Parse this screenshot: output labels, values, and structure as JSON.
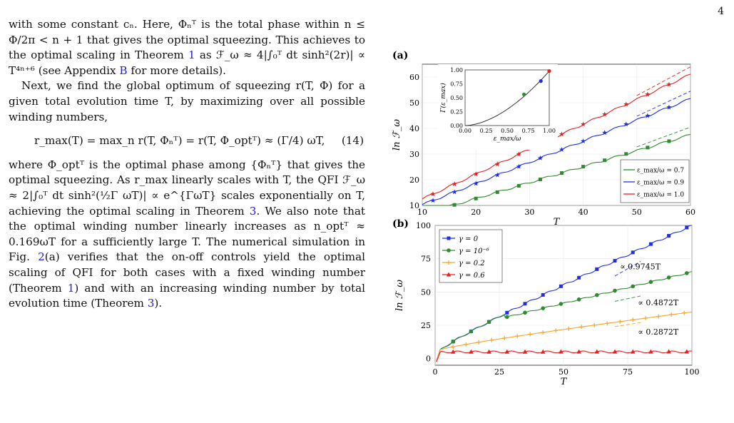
{
  "page_number": "4",
  "text": {
    "p1": "with some constant cₙ. Here, Φₙᵀ is the total phase within n ≤ Φ/2π < n + 1 that gives the optimal squeezing. This achieves to the optimal scaling in Theorem",
    "p1_ref1": "1",
    "p1b": " as ℱ_ω ≈ 4|∫₀ᵀ dt sinh²(2r)| ∝ T⁴ⁿ⁺⁶ (see Appendix ",
    "p1_ref2": "B",
    "p1c": " for more details).",
    "p2": "Next, we find the global optimum of squeezing r(T, Φ) for a given total evolution time T, by maximizing over all possible winding numbers,",
    "eq": "r_max(T) = max_n r(T, Φₙᵀ) = r(T, Φ_optᵀ) ≈ (Γ/4) ωT,",
    "eq_num": "(14)",
    "p3": "where Φ_optᵀ is the optimal phase among {Φₙᵀ} that gives the optimal squeezing. As r_max linearly scales with T, the QFI ℱ_ω ≈ 2|∫₀ᵀ dt sinh²(½Γ ωT)| ∝ e^{ΓωT} scales exponentially on T, achieving the optimal scaling in Theorem",
    "p3_ref1": "3",
    "p3b": ". We also note that the optimal winding number linearly increases as n_optᵀ ≈ 0.169ωT for a sufficiently large T. The numerical simulation in Fig.",
    "p3_ref2": "2",
    "p3c": "(a) verifies that the on-off controls yield the optimal scaling of QFI for both cases with a fixed winding number (Theorem",
    "p3_ref3": "1",
    "p3d": ") and with an increasing winding number by total evolution time (Theorem",
    "p3_ref4": "3",
    "p3e": ")."
  },
  "colors": {
    "green": "#2e8b2e",
    "blue": "#1f2ee6",
    "red": "#e61f1f",
    "orange": "#f5a623",
    "link": "#2323c8"
  },
  "chart_data": [
    {
      "type": "line",
      "panel_label": "(a)",
      "xlabel": "T",
      "ylabel": "ln ℱ_ω",
      "xlim": [
        10,
        60
      ],
      "ylim": [
        10,
        65
      ],
      "xticks": [
        10,
        20,
        30,
        40,
        50,
        60
      ],
      "yticks": [
        10,
        20,
        30,
        40,
        50,
        60
      ],
      "legend_position": "bottom-right",
      "series": [
        {
          "name": "ε_max/ω = 0.7",
          "color": "#2e8b2e",
          "marker": "square",
          "x": [
            10,
            60
          ],
          "y": [
            6.5,
            37.5
          ]
        },
        {
          "name": "ε_max/ω = 0.9",
          "color": "#1f2ee6",
          "marker": "star",
          "x": [
            10,
            60
          ],
          "y": [
            10.3,
            51.5
          ]
        },
        {
          "name": "ε_max/ω = 1.0",
          "color": "#e61f1f",
          "marker": "star",
          "x": [
            10,
            60
          ],
          "y": [
            12.5,
            61
          ]
        }
      ],
      "inset": {
        "xlabel": "ε_max/ω",
        "ylabel": "Γ(ε_max)",
        "xlim": [
          0,
          1
        ],
        "ylim": [
          0,
          1
        ],
        "xticks": [
          0.0,
          0.25,
          0.5,
          0.75,
          1.0
        ],
        "xtick_labels": [
          "0.00",
          "0.25",
          "0.50",
          "0.75",
          "1.00"
        ],
        "yticks": [
          0,
          0.25,
          0.5,
          0.75,
          1.0
        ],
        "ytick_labels": [
          "0.00",
          "0.25",
          "0.50",
          "0.75",
          "1.00"
        ],
        "points": [
          {
            "x": 0.7,
            "y": 0.56,
            "color": "#2e8b2e"
          },
          {
            "x": 0.9,
            "y": 0.8,
            "color": "#1f2ee6"
          },
          {
            "x": 1.0,
            "y": 0.98,
            "color": "#e61f1f"
          }
        ]
      }
    },
    {
      "type": "line",
      "panel_label": "(b)",
      "xlabel": "T",
      "ylabel": "ln ℱ_ω",
      "xlim": [
        0,
        100
      ],
      "ylim": [
        -5,
        100
      ],
      "xticks": [
        0,
        25,
        50,
        75,
        100
      ],
      "yticks": [
        0,
        25,
        50,
        75,
        100
      ],
      "legend_position": "top-left",
      "series": [
        {
          "name": "γ = 0",
          "color": "#1f2ee6",
          "marker": "square",
          "slope": 0.9745
        },
        {
          "name": "γ = 10⁻⁶",
          "color": "#2e8b2e",
          "marker": "circle",
          "slope": 0.4872
        },
        {
          "name": "γ = 0.2",
          "color": "#f5a623",
          "marker": "plus",
          "slope": 0.2872
        },
        {
          "name": "γ = 0.6",
          "color": "#e61f1f",
          "marker": "triangle",
          "plateau": 5
        }
      ],
      "annotations": [
        "∝ 0.9745T",
        "∝ 0.4872T",
        "∝ 0.2872T"
      ]
    }
  ]
}
